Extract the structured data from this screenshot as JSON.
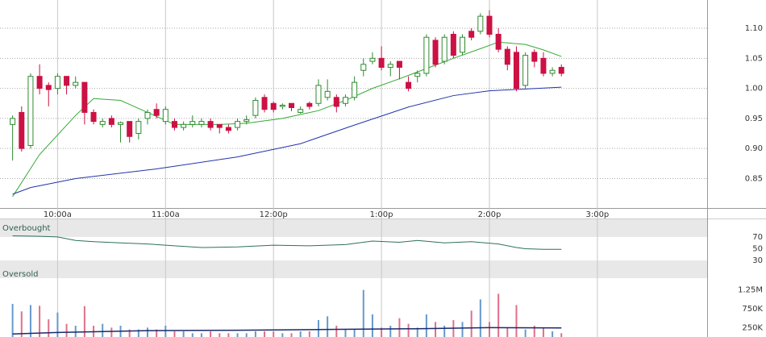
{
  "chart_data": [
    {
      "type": "candlestick",
      "x": [
        575,
        580,
        585,
        590,
        595,
        600,
        605,
        610,
        615,
        620,
        625,
        630,
        635,
        640,
        645,
        650,
        655,
        660,
        665,
        670,
        675,
        680,
        685,
        690,
        695,
        700,
        705,
        710,
        715,
        720,
        725,
        730,
        735,
        740,
        745,
        750,
        755,
        760,
        765,
        770,
        775,
        780,
        785,
        790,
        795,
        800,
        805,
        810,
        815,
        820,
        825,
        830,
        835,
        840,
        845,
        850,
        855,
        860,
        865,
        870,
        875,
        880
      ],
      "open": [
        0.94,
        0.96,
        0.905,
        1.02,
        1.005,
        1.0,
        1.02,
        1.005,
        1.01,
        0.96,
        0.94,
        0.95,
        0.94,
        0.945,
        0.925,
        0.95,
        0.965,
        0.945,
        0.945,
        0.935,
        0.94,
        0.94,
        0.945,
        0.94,
        0.935,
        0.935,
        0.945,
        0.955,
        0.985,
        0.975,
        0.97,
        0.975,
        0.96,
        0.975,
        0.975,
        0.985,
        0.985,
        0.975,
        0.985,
        1.03,
        1.045,
        1.05,
        1.035,
        1.045,
        1.01,
        1.02,
        1.025,
        1.08,
        1.045,
        1.09,
        1.06,
        1.095,
        1.095,
        1.12,
        1.09,
        1.065,
        1.06,
        1.005,
        1.06,
        1.05,
        1.025,
        1.035
      ],
      "high": [
        0.955,
        0.97,
        1.025,
        1.04,
        1.01,
        1.025,
        1.02,
        1.02,
        1.01,
        0.965,
        0.95,
        0.955,
        0.945,
        0.945,
        0.95,
        0.965,
        0.975,
        0.97,
        0.95,
        0.945,
        0.955,
        0.95,
        0.95,
        0.94,
        0.94,
        0.95,
        0.955,
        0.985,
        0.99,
        0.978,
        0.975,
        0.975,
        0.97,
        0.978,
        1.015,
        1.015,
        0.99,
        0.99,
        1.02,
        1.05,
        1.06,
        1.07,
        1.045,
        1.045,
        1.02,
        1.03,
        1.09,
        1.085,
        1.09,
        1.095,
        1.09,
        1.1,
        1.125,
        1.13,
        1.1,
        1.07,
        1.07,
        1.06,
        1.065,
        1.06,
        1.035,
        1.04
      ],
      "low": [
        0.88,
        0.895,
        0.9,
        0.99,
        0.97,
        0.99,
        0.99,
        1.0,
        0.94,
        0.94,
        0.935,
        0.935,
        0.91,
        0.91,
        0.915,
        0.94,
        0.95,
        0.94,
        0.93,
        0.93,
        0.935,
        0.935,
        0.93,
        0.925,
        0.925,
        0.93,
        0.94,
        0.95,
        0.96,
        0.96,
        0.965,
        0.962,
        0.958,
        0.965,
        0.97,
        0.98,
        0.96,
        0.97,
        0.98,
        1.02,
        1.04,
        1.03,
        1.02,
        1.015,
        0.995,
        1.01,
        1.02,
        1.035,
        1.04,
        1.05,
        1.055,
        1.08,
        1.09,
        1.085,
        1.06,
        1.03,
        0.995,
        1.0,
        1.035,
        1.02,
        1.02,
        1.02
      ],
      "close": [
        0.95,
        0.9,
        1.02,
        1.0,
        0.998,
        1.02,
        1.005,
        1.01,
        0.96,
        0.945,
        0.945,
        0.94,
        0.943,
        0.92,
        0.945,
        0.96,
        0.955,
        0.965,
        0.935,
        0.94,
        0.945,
        0.945,
        0.935,
        0.935,
        0.93,
        0.945,
        0.948,
        0.98,
        0.965,
        0.965,
        0.972,
        0.968,
        0.965,
        0.97,
        1.005,
        0.995,
        0.97,
        0.985,
        1.01,
        1.04,
        1.05,
        1.035,
        1.04,
        1.035,
        1.0,
        1.025,
        1.085,
        1.04,
        1.085,
        1.055,
        1.085,
        1.085,
        1.12,
        1.09,
        1.065,
        1.04,
        1.0,
        1.055,
        1.045,
        1.025,
        1.03,
        1.025
      ],
      "up_color": "#2e8b2e",
      "down_color": "#cc1144",
      "series": [
        {
          "color": "#33aa33",
          "x": [
            575,
            590,
            610,
            620,
            635,
            650,
            665,
            690,
            705,
            725,
            745,
            760,
            775,
            790,
            805,
            820,
            835,
            845,
            860,
            870,
            880
          ],
          "values": [
            0.82,
            0.89,
            0.955,
            0.983,
            0.98,
            0.96,
            0.94,
            0.94,
            0.942,
            0.95,
            0.963,
            0.98,
            1.0,
            1.016,
            1.033,
            1.05,
            1.066,
            1.077,
            1.073,
            1.064,
            1.053
          ]
        },
        {
          "color": "#2233aa",
          "x": [
            575,
            585,
            610,
            655,
            700,
            735,
            765,
            795,
            820,
            840,
            880
          ],
          "values": [
            0.824,
            0.835,
            0.85,
            0.866,
            0.886,
            0.908,
            0.939,
            0.969,
            0.988,
            0.996,
            1.002
          ]
        }
      ],
      "xlim": [
        568,
        961
      ],
      "xticks": [
        {
          "value": 600,
          "label": "10:00a"
        },
        {
          "value": 660,
          "label": "11:00a"
        },
        {
          "value": 720,
          "label": "12:00p"
        },
        {
          "value": 780,
          "label": "1:00p"
        },
        {
          "value": 840,
          "label": "2:00p"
        },
        {
          "value": 900,
          "label": "3:00p"
        }
      ],
      "ylim": [
        0.801,
        1.147
      ],
      "yticks": [
        {
          "value": 1.1,
          "label": "1.10"
        },
        1.05,
        {
          "value": 1.0,
          "label": "1.00"
        },
        0.95,
        {
          "value": 0.9,
          "label": "0.90"
        },
        0.85
      ],
      "grid": true
    },
    {
      "type": "line",
      "overbought_label": "Overbought",
      "oversold_label": "Oversold",
      "color": "#2f6f5f",
      "x": [
        575,
        590,
        600,
        610,
        620,
        635,
        650,
        665,
        680,
        700,
        720,
        740,
        760,
        775,
        790,
        800,
        815,
        830,
        845,
        855,
        860,
        870,
        880
      ],
      "values": [
        72,
        71,
        70,
        64,
        62,
        60,
        58,
        55,
        52,
        53,
        56,
        55,
        57,
        63,
        61,
        64,
        60,
        62,
        58,
        52,
        50,
        49,
        49
      ],
      "ylim": [
        0,
        100
      ],
      "yticks": [
        70,
        50,
        30
      ]
    },
    {
      "type": "bar",
      "up_color": "#6699cc",
      "down_color": "#e0708a",
      "x": [
        575,
        580,
        585,
        590,
        595,
        600,
        605,
        610,
        615,
        620,
        625,
        630,
        635,
        640,
        645,
        650,
        655,
        660,
        665,
        670,
        675,
        680,
        685,
        690,
        695,
        700,
        705,
        710,
        715,
        720,
        725,
        730,
        735,
        740,
        745,
        750,
        755,
        760,
        765,
        770,
        775,
        780,
        785,
        790,
        795,
        800,
        805,
        810,
        815,
        820,
        825,
        830,
        835,
        840,
        845,
        850,
        855,
        860,
        865,
        870,
        875,
        880
      ],
      "values": [
        880000,
        680000,
        850000,
        830000,
        470000,
        650000,
        350000,
        300000,
        820000,
        300000,
        350000,
        250000,
        300000,
        200000,
        200000,
        250000,
        200000,
        300000,
        150000,
        150000,
        100000,
        100000,
        150000,
        100000,
        100000,
        100000,
        100000,
        150000,
        150000,
        150000,
        100000,
        100000,
        150000,
        150000,
        450000,
        550000,
        300000,
        200000,
        200000,
        1250000,
        600000,
        250000,
        300000,
        500000,
        350000,
        250000,
        600000,
        400000,
        300000,
        450000,
        400000,
        700000,
        1000000,
        400000,
        1150000,
        250000,
        850000,
        200000,
        300000,
        250000,
        150000,
        100000
      ],
      "series": [
        {
          "color": "#1a2a6c",
          "x": [
            575,
            600,
            650,
            700,
            750,
            800,
            840,
            880
          ],
          "values": [
            80000,
            120000,
            170000,
            180000,
            200000,
            220000,
            250000,
            240000
          ]
        }
      ],
      "ylim": [
        0,
        1500000
      ],
      "yticks": [
        {
          "value": 1250000,
          "label": "1.25M"
        },
        {
          "value": 750000,
          "label": "750K"
        },
        {
          "value": 250000,
          "label": "250K"
        }
      ]
    }
  ]
}
